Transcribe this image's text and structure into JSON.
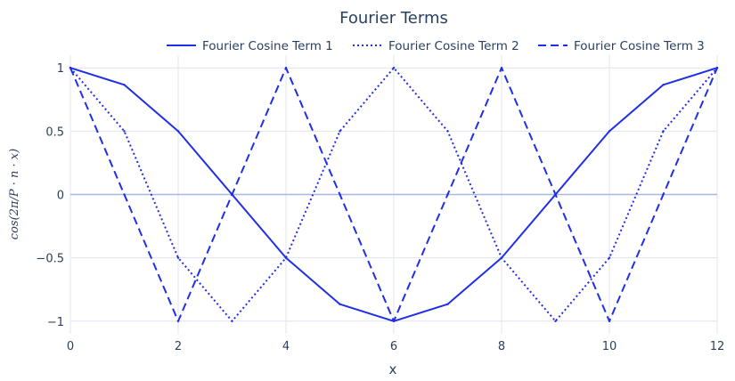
{
  "chart_data": {
    "type": "line",
    "title": "Fourier Terms",
    "xlabel": "x",
    "ylabel": "cos(2π/P · n · x)",
    "xlim": [
      0,
      12
    ],
    "ylim": [
      -1.1,
      1.1
    ],
    "xticks": [
      0,
      2,
      4,
      6,
      8,
      10,
      12
    ],
    "xtick_labels": [
      "0",
      "2",
      "4",
      "6",
      "8",
      "10",
      "12"
    ],
    "yticks": [
      1,
      0.5,
      0,
      -0.5,
      -1
    ],
    "ytick_labels": [
      "1",
      "0.5",
      "0",
      "−0.5",
      "−1"
    ],
    "grid": true,
    "legend_position": "top-right",
    "line_color": "#1f2fe8",
    "x": [
      0,
      1,
      2,
      3,
      4,
      5,
      6,
      7,
      8,
      9,
      10,
      11,
      12
    ],
    "series": [
      {
        "name": "Fourier Cosine Term 1",
        "dash": "solid",
        "values": [
          1,
          0.866,
          0.5,
          0,
          -0.5,
          -0.866,
          -1,
          -0.866,
          -0.5,
          0,
          0.5,
          0.866,
          1
        ]
      },
      {
        "name": "Fourier Cosine Term 2",
        "dash": "dot",
        "values": [
          1,
          0.5,
          -0.5,
          -1,
          -0.5,
          0.5,
          1,
          0.5,
          -0.5,
          -1,
          -0.5,
          0.5,
          1
        ]
      },
      {
        "name": "Fourier Cosine Term 3",
        "dash": "dash",
        "values": [
          1,
          0,
          -1,
          0,
          1,
          0,
          -1,
          0,
          1,
          0,
          -1,
          0,
          1
        ]
      }
    ]
  }
}
